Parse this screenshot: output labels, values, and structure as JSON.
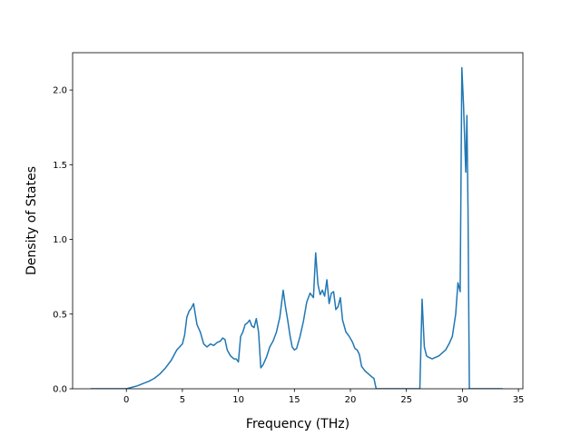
{
  "chart_data": {
    "type": "line",
    "title": "",
    "xlabel": "Frequency (THz)",
    "ylabel": "Density of States",
    "xlim": [
      -4.8,
      35.4
    ],
    "ylim": [
      0.0,
      2.25
    ],
    "xticks": [
      0,
      5,
      10,
      15,
      20,
      25,
      30,
      35
    ],
    "yticks": [
      0.0,
      0.5,
      1.0,
      1.5,
      2.0
    ],
    "xtick_labels": [
      "0",
      "5",
      "10",
      "15",
      "20",
      "25",
      "30",
      "35"
    ],
    "ytick_labels": [
      "0.0",
      "0.5",
      "1.0",
      "1.5",
      "2.0"
    ],
    "grid": false,
    "legend": "none",
    "series": [
      {
        "color": "#1f77b4",
        "x": [
          -3.2,
          0.0,
          0.5,
          1.0,
          1.5,
          2.0,
          2.5,
          3.0,
          3.5,
          4.0,
          4.5,
          5.0,
          5.2,
          5.4,
          5.6,
          5.8,
          6.0,
          6.3,
          6.6,
          6.9,
          7.2,
          7.5,
          7.8,
          8.1,
          8.4,
          8.6,
          8.8,
          9.0,
          9.3,
          9.6,
          9.8,
          10.0,
          10.2,
          10.4,
          10.6,
          10.8,
          11.0,
          11.2,
          11.4,
          11.6,
          11.8,
          12.0,
          12.2,
          12.5,
          12.8,
          13.1,
          13.4,
          13.7,
          14.0,
          14.2,
          14.4,
          14.6,
          14.8,
          15.0,
          15.2,
          15.5,
          15.8,
          16.1,
          16.4,
          16.7,
          16.9,
          17.1,
          17.3,
          17.5,
          17.7,
          17.9,
          18.1,
          18.3,
          18.5,
          18.7,
          18.9,
          19.1,
          19.3,
          19.6,
          19.9,
          20.2,
          20.4,
          20.6,
          20.8,
          21.0,
          21.3,
          21.6,
          21.9,
          22.1,
          22.3,
          22.6,
          26.2,
          26.4,
          26.6,
          26.8,
          27.0,
          27.3,
          27.6,
          27.9,
          28.2,
          28.5,
          28.8,
          29.1,
          29.4,
          29.6,
          29.8,
          29.95,
          30.1,
          30.3,
          30.4,
          30.5,
          30.62,
          30.8,
          33.6
        ],
        "y": [
          0.0,
          0.0,
          0.01,
          0.02,
          0.035,
          0.05,
          0.07,
          0.1,
          0.14,
          0.19,
          0.26,
          0.3,
          0.36,
          0.48,
          0.52,
          0.54,
          0.57,
          0.43,
          0.38,
          0.3,
          0.28,
          0.3,
          0.29,
          0.31,
          0.32,
          0.34,
          0.33,
          0.26,
          0.22,
          0.2,
          0.2,
          0.18,
          0.35,
          0.38,
          0.43,
          0.44,
          0.46,
          0.42,
          0.41,
          0.47,
          0.38,
          0.14,
          0.16,
          0.21,
          0.28,
          0.32,
          0.38,
          0.48,
          0.66,
          0.55,
          0.46,
          0.36,
          0.28,
          0.26,
          0.27,
          0.35,
          0.45,
          0.58,
          0.64,
          0.61,
          0.91,
          0.7,
          0.63,
          0.66,
          0.62,
          0.73,
          0.57,
          0.64,
          0.65,
          0.53,
          0.55,
          0.61,
          0.46,
          0.38,
          0.35,
          0.31,
          0.27,
          0.26,
          0.23,
          0.15,
          0.12,
          0.1,
          0.08,
          0.07,
          0.0,
          0.0,
          0.0,
          0.6,
          0.28,
          0.22,
          0.21,
          0.2,
          0.21,
          0.22,
          0.24,
          0.26,
          0.3,
          0.35,
          0.5,
          0.71,
          0.65,
          2.15,
          1.9,
          1.45,
          1.83,
          1.2,
          0.0,
          0.0,
          0.0
        ]
      }
    ]
  }
}
